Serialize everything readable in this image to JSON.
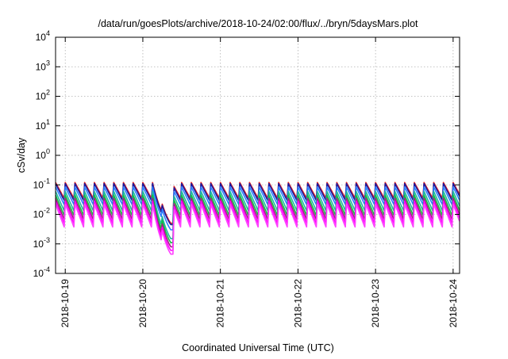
{
  "chart_data": {
    "type": "line",
    "title": "/data/run/goesPlots/archive/2018-10-24/02:00/flux/../bryn/5daysMars.plot",
    "xlabel": "Coordinated Universal Time (UTC)",
    "ylabel": "cSv/day",
    "yscale": "log",
    "ylim": [
      0.0001,
      10000
    ],
    "y_ticks": [
      {
        "value": 0.0001,
        "mant": "10",
        "exp": "-4"
      },
      {
        "value": 0.001,
        "mant": "10",
        "exp": "-3"
      },
      {
        "value": 0.01,
        "mant": "10",
        "exp": "-2"
      },
      {
        "value": 0.1,
        "mant": "10",
        "exp": "-1"
      },
      {
        "value": 1,
        "mant": "10",
        "exp": "0"
      },
      {
        "value": 10,
        "mant": "10",
        "exp": "1"
      },
      {
        "value": 100,
        "mant": "10",
        "exp": "2"
      },
      {
        "value": 1000,
        "mant": "10",
        "exp": "3"
      },
      {
        "value": 10000,
        "mant": "10",
        "exp": "4"
      }
    ],
    "xlim": [
      "2018-10-18 21:00",
      "2018-10-24 02:00"
    ],
    "x_ticks": [
      "2018-10-19",
      "2018-10-20",
      "2018-10-21",
      "2018-10-22",
      "2018-10-23",
      "2018-10-24"
    ],
    "grid": true,
    "sawtooth_period_hours": 3,
    "series": [
      {
        "color": "#e0201f",
        "peak": 0.12,
        "trough": 0.03
      },
      {
        "color": "#1a1aa0",
        "peak": 0.11,
        "trough": 0.025
      },
      {
        "color": "#2a7fff",
        "peak": 0.085,
        "trough": 0.018
      },
      {
        "color": "#20b8a0",
        "peak": 0.06,
        "trough": 0.011
      },
      {
        "color": "#10c040",
        "peak": 0.045,
        "trough": 0.0075
      },
      {
        "color": "#a02080",
        "peak": 0.035,
        "trough": 0.0055
      },
      {
        "color": "#ff00ff",
        "peak": 0.028,
        "trough": 0.004
      },
      {
        "color": "#ff40ff",
        "peak": 0.022,
        "trough": 0.003
      }
    ],
    "dip": {
      "start": "2018-10-20 03:00",
      "end": "2018-10-20 09:30",
      "min_values": [
        0.005,
        0.0045,
        0.003,
        0.0015,
        0.0011,
        0.0008,
        0.0006,
        0.00045
      ]
    }
  }
}
